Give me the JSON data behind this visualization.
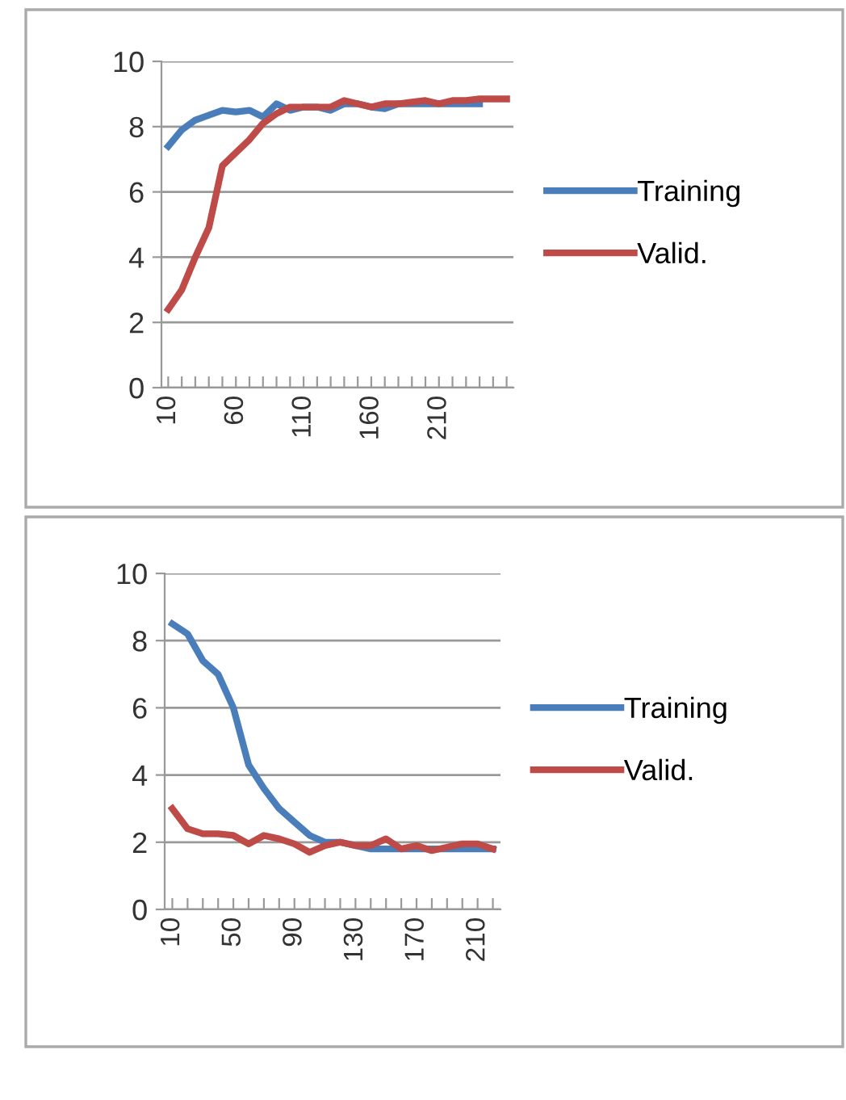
{
  "chart_data": [
    {
      "type": "line",
      "categories": [
        "10",
        null,
        null,
        null,
        null,
        "60",
        null,
        null,
        null,
        null,
        "110",
        null,
        null,
        null,
        null,
        "160",
        null,
        null,
        null,
        null,
        "210",
        null,
        null,
        null,
        null,
        null
      ],
      "series": [
        {
          "name": "Training",
          "color": "#4a7ebb",
          "values": [
            7.4,
            7.9,
            8.2,
            8.35,
            8.5,
            8.45,
            8.5,
            8.3,
            8.7,
            8.5,
            8.6,
            8.6,
            8.5,
            8.7,
            8.7,
            8.6,
            8.55,
            8.7,
            8.7,
            8.7,
            8.7,
            8.7,
            8.7,
            8.7,
            null,
            null
          ]
        },
        {
          "name": "Valid.",
          "color": "#be4b48",
          "values": [
            2.4,
            3.0,
            4.0,
            4.9,
            6.8,
            7.2,
            7.6,
            8.1,
            8.4,
            8.6,
            8.6,
            8.6,
            8.6,
            8.8,
            8.7,
            8.6,
            8.7,
            8.7,
            8.75,
            8.8,
            8.7,
            8.8,
            8.8,
            8.85,
            8.85,
            8.85
          ]
        }
      ],
      "ylim": [
        0,
        10
      ],
      "yticks": [
        0,
        2,
        4,
        6,
        8,
        10
      ],
      "grid": "y",
      "legend": "right",
      "marker": "none",
      "line_style": "solid"
    },
    {
      "type": "line",
      "categories": [
        "10",
        null,
        null,
        null,
        "50",
        null,
        null,
        null,
        "90",
        null,
        null,
        null,
        "130",
        null,
        null,
        null,
        "170",
        null,
        null,
        null,
        "210",
        null
      ],
      "series": [
        {
          "name": "Training",
          "color": "#4a7ebb",
          "values": [
            8.5,
            8.2,
            7.4,
            7.0,
            6.0,
            4.3,
            3.6,
            3.0,
            2.6,
            2.2,
            2.0,
            2.0,
            1.9,
            1.8,
            1.8,
            1.8,
            1.8,
            1.8,
            1.8,
            1.8,
            1.8,
            1.8
          ]
        },
        {
          "name": "Valid.",
          "color": "#be4b48",
          "values": [
            3.0,
            2.4,
            2.25,
            2.25,
            2.2,
            1.95,
            2.2,
            2.1,
            1.95,
            1.7,
            1.9,
            2.0,
            1.9,
            1.9,
            2.1,
            1.8,
            1.9,
            1.75,
            1.85,
            1.95,
            1.95,
            1.8
          ]
        }
      ],
      "ylim": [
        0,
        10
      ],
      "yticks": [
        0,
        2,
        4,
        6,
        8,
        10
      ],
      "grid": "y",
      "legend": "right",
      "marker": "none",
      "line_style": "solid"
    }
  ]
}
